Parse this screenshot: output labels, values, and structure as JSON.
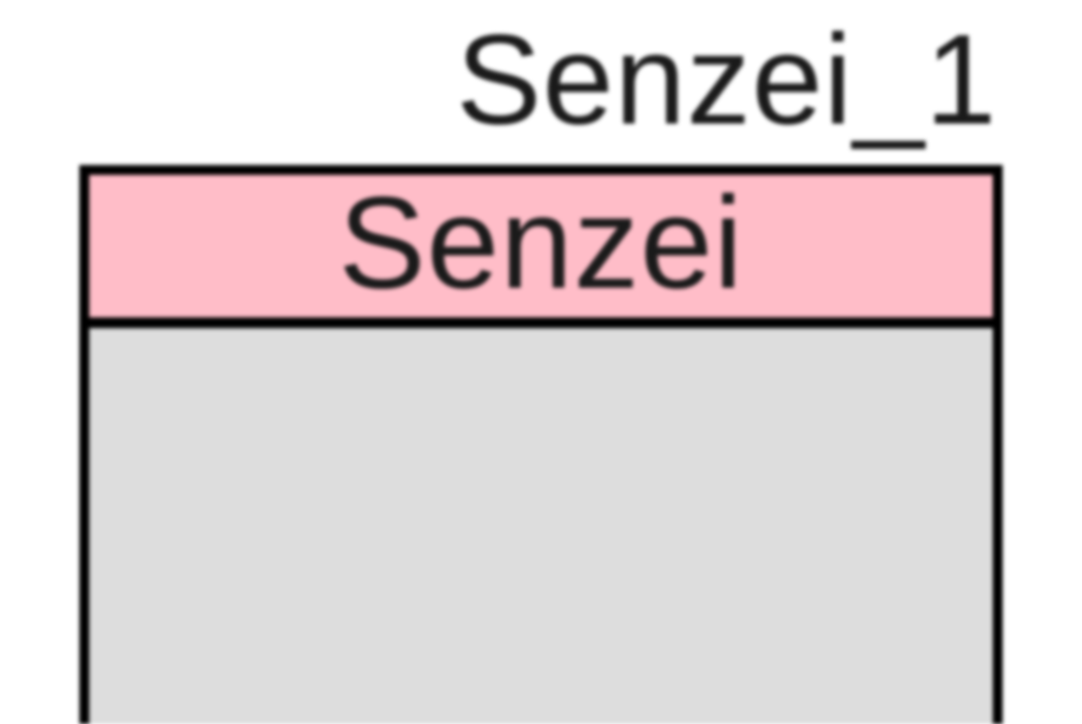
{
  "canvas": {
    "background": "#FFFFFF"
  },
  "node": {
    "instance_label": "Senzei_1",
    "title": "Senzei",
    "colors": {
      "header_fill": "#FFBDC8",
      "body_fill": "#DDDDDD",
      "border": "#000000",
      "text": "#1A1A1A",
      "canvas_bg": "#FFFFFF"
    }
  }
}
